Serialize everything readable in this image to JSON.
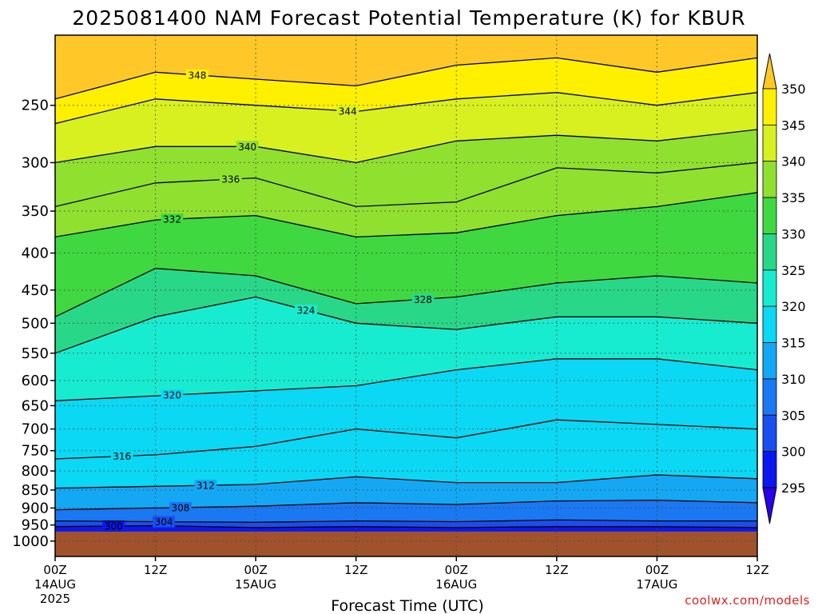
{
  "chart_data": {
    "type": "contour",
    "title": "2025081400 NAM Forecast Potential Temperature (K) for KBUR",
    "xlabel": "Forecast Time (UTC)",
    "ylabel": "",
    "x_ticks": [
      {
        "hour": 0,
        "label": "00Z",
        "sub": "14AUG",
        "sub2": "2025"
      },
      {
        "hour": 12,
        "label": "12Z",
        "sub": "",
        "sub2": ""
      },
      {
        "hour": 24,
        "label": "00Z",
        "sub": "15AUG",
        "sub2": ""
      },
      {
        "hour": 36,
        "label": "12Z",
        "sub": "",
        "sub2": ""
      },
      {
        "hour": 48,
        "label": "00Z",
        "sub": "16AUG",
        "sub2": ""
      },
      {
        "hour": 60,
        "label": "12Z",
        "sub": "",
        "sub2": ""
      },
      {
        "hour": 72,
        "label": "00Z",
        "sub": "17AUG",
        "sub2": ""
      },
      {
        "hour": 84,
        "label": "12Z",
        "sub": "",
        "sub2": ""
      }
    ],
    "xlim": [
      0,
      84
    ],
    "y_scale": "log-pressure",
    "y_ticks": [
      250,
      300,
      350,
      400,
      450,
      500,
      550,
      600,
      650,
      700,
      750,
      800,
      850,
      900,
      950,
      1000
    ],
    "ylim": [
      1050,
      200
    ],
    "ground_pressure": 970,
    "colorbar": {
      "levels": [
        295,
        300,
        305,
        310,
        315,
        320,
        325,
        330,
        335,
        340,
        345,
        350
      ],
      "colors": [
        "#2a00e8",
        "#0a18f0",
        "#1850f0",
        "#1a78f2",
        "#14a8f4",
        "#0ad8f4",
        "#18ecd0",
        "#28d888",
        "#40d840",
        "#90e030",
        "#d8f020",
        "#fff000",
        "#ffc828"
      ]
    },
    "isentropes": [
      {
        "theta": 300,
        "label": "300",
        "label_hour": 7,
        "points": [
          [
            0,
            955
          ],
          [
            12,
            952
          ],
          [
            24,
            958
          ],
          [
            36,
            955
          ],
          [
            48,
            958
          ],
          [
            60,
            955
          ],
          [
            72,
            955
          ],
          [
            84,
            958
          ]
        ]
      },
      {
        "theta": 304,
        "label": "304",
        "label_hour": 13,
        "points": [
          [
            0,
            938
          ],
          [
            12,
            940
          ],
          [
            24,
            942
          ],
          [
            36,
            938
          ],
          [
            48,
            940
          ],
          [
            60,
            935
          ],
          [
            72,
            938
          ],
          [
            84,
            938
          ]
        ]
      },
      {
        "theta": 308,
        "label": "308",
        "label_hour": 15,
        "points": [
          [
            0,
            905
          ],
          [
            12,
            900
          ],
          [
            24,
            895
          ],
          [
            36,
            885
          ],
          [
            48,
            890
          ],
          [
            60,
            880
          ],
          [
            72,
            878
          ],
          [
            84,
            885
          ]
        ]
      },
      {
        "theta": 312,
        "label": "312",
        "label_hour": 18,
        "points": [
          [
            0,
            845
          ],
          [
            12,
            840
          ],
          [
            24,
            835
          ],
          [
            36,
            815
          ],
          [
            48,
            830
          ],
          [
            60,
            830
          ],
          [
            72,
            810
          ],
          [
            84,
            820
          ]
        ]
      },
      {
        "theta": 316,
        "label": "316",
        "label_hour": 8,
        "points": [
          [
            0,
            770
          ],
          [
            12,
            760
          ],
          [
            24,
            740
          ],
          [
            36,
            700
          ],
          [
            48,
            720
          ],
          [
            60,
            680
          ],
          [
            72,
            690
          ],
          [
            84,
            700
          ]
        ]
      },
      {
        "theta": 320,
        "label": "320",
        "label_hour": 14,
        "points": [
          [
            0,
            640
          ],
          [
            12,
            630
          ],
          [
            24,
            620
          ],
          [
            36,
            610
          ],
          [
            48,
            580
          ],
          [
            60,
            560
          ],
          [
            72,
            560
          ],
          [
            84,
            580
          ]
        ]
      },
      {
        "theta": 324,
        "label": "324",
        "label_hour": 30,
        "points": [
          [
            0,
            550
          ],
          [
            12,
            490
          ],
          [
            24,
            460
          ],
          [
            36,
            500
          ],
          [
            48,
            510
          ],
          [
            60,
            490
          ],
          [
            72,
            490
          ],
          [
            84,
            500
          ]
        ]
      },
      {
        "theta": 328,
        "label": "328",
        "label_hour": 44,
        "points": [
          [
            0,
            490
          ],
          [
            12,
            420
          ],
          [
            24,
            430
          ],
          [
            36,
            470
          ],
          [
            48,
            460
          ],
          [
            60,
            440
          ],
          [
            72,
            430
          ],
          [
            84,
            440
          ]
        ]
      },
      {
        "theta": 332,
        "label": "332",
        "label_hour": 14,
        "points": [
          [
            0,
            380
          ],
          [
            12,
            360
          ],
          [
            24,
            355
          ],
          [
            36,
            380
          ],
          [
            48,
            375
          ],
          [
            60,
            355
          ],
          [
            72,
            345
          ],
          [
            84,
            330
          ]
        ]
      },
      {
        "theta": 336,
        "label": "336",
        "label_hour": 21,
        "points": [
          [
            0,
            345
          ],
          [
            12,
            320
          ],
          [
            24,
            315
          ],
          [
            36,
            345
          ],
          [
            48,
            340
          ],
          [
            60,
            305
          ],
          [
            72,
            310
          ],
          [
            84,
            300
          ]
        ]
      },
      {
        "theta": 340,
        "label": "340",
        "label_hour": 23,
        "points": [
          [
            0,
            300
          ],
          [
            12,
            285
          ],
          [
            24,
            285
          ],
          [
            36,
            300
          ],
          [
            48,
            280
          ],
          [
            60,
            275
          ],
          [
            72,
            280
          ],
          [
            84,
            270
          ]
        ]
      },
      {
        "theta": 344,
        "label": "344",
        "label_hour": 35,
        "points": [
          [
            0,
            265
          ],
          [
            12,
            245
          ],
          [
            24,
            250
          ],
          [
            36,
            255
          ],
          [
            48,
            245
          ],
          [
            60,
            240
          ],
          [
            72,
            250
          ],
          [
            84,
            240
          ]
        ]
      },
      {
        "theta": 348,
        "label": "348",
        "label_hour": 17,
        "points": [
          [
            0,
            245
          ],
          [
            12,
            225
          ],
          [
            24,
            230
          ],
          [
            36,
            235
          ],
          [
            48,
            220
          ],
          [
            60,
            215
          ],
          [
            72,
            225
          ],
          [
            84,
            215
          ]
        ]
      }
    ]
  },
  "credit": "coolwx.com/models"
}
